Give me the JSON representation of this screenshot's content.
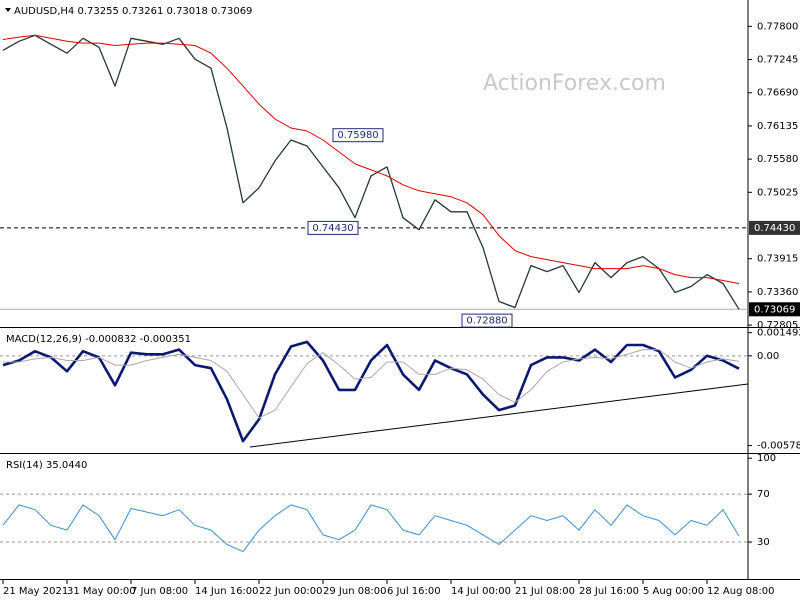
{
  "chart_data": [
    {
      "type": "line",
      "title": "AUDUSD,H4 0.73255 0.73261 0.73018 0.73069",
      "watermark": "ActionForex.com",
      "ylim": [
        0.7279,
        0.7819
      ],
      "yticks": [
        {
          "value": 0.778,
          "label": "0.77800"
        },
        {
          "value": 0.77245,
          "label": "0.77245"
        },
        {
          "value": 0.7669,
          "label": "0.76690"
        },
        {
          "value": 0.76135,
          "label": "0.76135"
        },
        {
          "value": 0.7558,
          "label": "0.75580"
        },
        {
          "value": 0.75025,
          "label": "0.75025"
        },
        {
          "value": 0.73915,
          "label": "0.73915"
        },
        {
          "value": 0.7336,
          "label": "0.73360"
        },
        {
          "value": 0.72805,
          "label": "0.72805"
        }
      ],
      "hlines": [
        {
          "value": 0.7443,
          "label": "0.74430"
        }
      ],
      "last_price": {
        "value": 0.73069,
        "label": "0.73069"
      },
      "annotations": [
        {
          "value": 0.7598,
          "label": "0.75980"
        },
        {
          "value": 0.7443,
          "label": "0.74430"
        },
        {
          "value": 0.7288,
          "label": "0.72880"
        }
      ],
      "series": [
        {
          "color": "#243838",
          "values": [
            0.774,
            0.7755,
            0.7765,
            0.775,
            0.7735,
            0.776,
            0.7745,
            0.768,
            0.776,
            0.7755,
            0.775,
            0.776,
            0.7725,
            0.771,
            0.761,
            0.7485,
            0.751,
            0.7555,
            0.759,
            0.758,
            0.7545,
            0.751,
            0.746,
            0.753,
            0.7545,
            0.746,
            0.744,
            0.749,
            0.747,
            0.747,
            0.741,
            0.732,
            0.731,
            0.738,
            0.737,
            0.738,
            0.7335,
            0.7385,
            0.736,
            0.7385,
            0.7395,
            0.7375,
            0.7335,
            0.7345,
            0.7365,
            0.735,
            0.73069
          ]
        },
        {
          "color": "#e00000",
          "values": [
            0.7758,
            0.7762,
            0.7765,
            0.776,
            0.7755,
            0.7752,
            0.7752,
            0.7748,
            0.775,
            0.7752,
            0.7752,
            0.775,
            0.7748,
            0.7735,
            0.771,
            0.768,
            0.765,
            0.7625,
            0.761,
            0.7605,
            0.759,
            0.757,
            0.755,
            0.754,
            0.753,
            0.7515,
            0.7505,
            0.75,
            0.7495,
            0.7485,
            0.7465,
            0.743,
            0.7405,
            0.7395,
            0.739,
            0.7385,
            0.738,
            0.7375,
            0.7375,
            0.7375,
            0.738,
            0.7375,
            0.7365,
            0.736,
            0.736,
            0.7355,
            0.735
          ]
        }
      ]
    },
    {
      "type": "line",
      "title": "MACD(12,26,9) -0.000832 -0.000351",
      "ylim": [
        -0.0062,
        0.0016
      ],
      "yticks": [
        0.001492,
        {
          "value": 0,
          "label": "0.00"
        },
        -0.005784
      ],
      "levels": [
        0
      ],
      "series": [
        {
          "color": "#0b1870",
          "values": [
            -0.0006,
            -0.0003,
            0.0003,
            -0.0001,
            -0.001,
            0.0003,
            -0.0001,
            -0.0019,
            0.0002,
            0.0001,
            0.0001,
            0.0004,
            -0.0006,
            -0.0008,
            -0.0028,
            -0.0055,
            -0.0041,
            -0.0012,
            0.0006,
            0.0009,
            -0.0003,
            -0.0022,
            -0.0022,
            -0.0003,
            0.0007,
            -0.0012,
            -0.0022,
            -0.0003,
            -0.0008,
            -0.0012,
            -0.0025,
            -0.0035,
            -0.0032,
            -0.0006,
            -0.0001,
            -0.0001,
            -0.0003,
            0.0004,
            -0.0004,
            0.0007,
            0.0007,
            0.0003,
            -0.0014,
            -0.0009,
            0,
            -0.0003,
            -0.000832
          ]
        },
        {
          "color": "#a8a8a8",
          "values": [
            -0.0004,
            -0.0004,
            -0.0002,
            -0.0001,
            -0.0003,
            -0.0003,
            -0.0001,
            -0.0006,
            -0.0006,
            -0.0003,
            -0.0001,
            0.0001,
            -0.0001,
            -0.0003,
            -0.001,
            -0.0025,
            -0.004,
            -0.0035,
            -0.002,
            -0.0005,
            0.0002,
            -0.0006,
            -0.0015,
            -0.0014,
            -0.0004,
            -0.0004,
            -0.0012,
            -0.0012,
            -0.0008,
            -0.0009,
            -0.0015,
            -0.0025,
            -0.003,
            -0.0022,
            -0.001,
            -0.0004,
            -0.0002,
            -0.0001,
            -0.0002,
            0.0001,
            0.0004,
            0.0004,
            -0.0004,
            -0.0008,
            -0.0004,
            -0.0002,
            -0.000351
          ]
        }
      ]
    },
    {
      "type": "line",
      "title": "RSI(14) 35.0440",
      "ylim": [
        0,
        101
      ],
      "yticks": [
        100,
        70,
        30
      ],
      "levels": [
        30,
        70
      ],
      "categories": [
        "21 May 2021",
        null,
        null,
        null,
        "31 May 00:00",
        null,
        null,
        null,
        "7 Jun 08:00",
        null,
        null,
        null,
        "14 Jun 16:00",
        null,
        null,
        null,
        "22 Jun 00:00",
        null,
        null,
        null,
        "29 Jun 08:00",
        null,
        null,
        null,
        "6 Jul 16:00",
        null,
        null,
        null,
        "14 Jul 00:00",
        null,
        null,
        null,
        "21 Jul 08:00",
        null,
        null,
        null,
        "28 Jul 16:00",
        null,
        null,
        null,
        "5 Aug 00:00",
        null,
        null,
        null,
        "12 Aug 08:00",
        null,
        null
      ],
      "series": [
        {
          "color": "#3a8fd6",
          "values": [
            44,
            61,
            57,
            44,
            40,
            61,
            52,
            32,
            58,
            55,
            52,
            57,
            44,
            40,
            28,
            22,
            40,
            52,
            61,
            57,
            36,
            32,
            40,
            61,
            57,
            40,
            36,
            52,
            48,
            44,
            36,
            28,
            40,
            52,
            48,
            52,
            40,
            57,
            44,
            61,
            52,
            48,
            36,
            48,
            44,
            57,
            35.044
          ]
        }
      ]
    }
  ]
}
